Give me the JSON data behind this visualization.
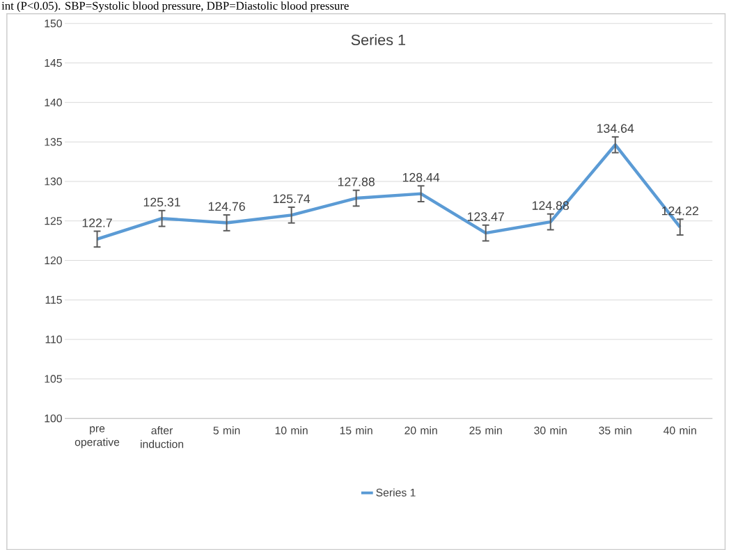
{
  "chart_data": {
    "type": "line",
    "title": "Series 1",
    "annotations": [
      "int (P<0.05). SBP=Systolic blood pressure, DBP=Diastolic blood pressure"
    ],
    "categories": [
      "pre operative",
      "after induction",
      "5 min",
      "10 min",
      "15 min",
      "20 min",
      "25 min",
      "30 min",
      "35 min",
      "40 min"
    ],
    "series": [
      {
        "name": "Series 1",
        "color": "#5b9bd5",
        "values": [
          122.7,
          125.31,
          124.76,
          125.74,
          127.88,
          128.44,
          123.47,
          124.88,
          134.64,
          124.22
        ],
        "errors": [
          1,
          1,
          1,
          1,
          1,
          1,
          1,
          1,
          1,
          1
        ]
      }
    ],
    "ylim": [
      100,
      150
    ],
    "yticks": [
      100,
      105,
      110,
      115,
      120,
      125,
      130,
      135,
      140,
      145,
      150
    ],
    "grid": "y",
    "legend": "bottom",
    "data_labels": true,
    "marker": "none",
    "line_style": "solid"
  }
}
